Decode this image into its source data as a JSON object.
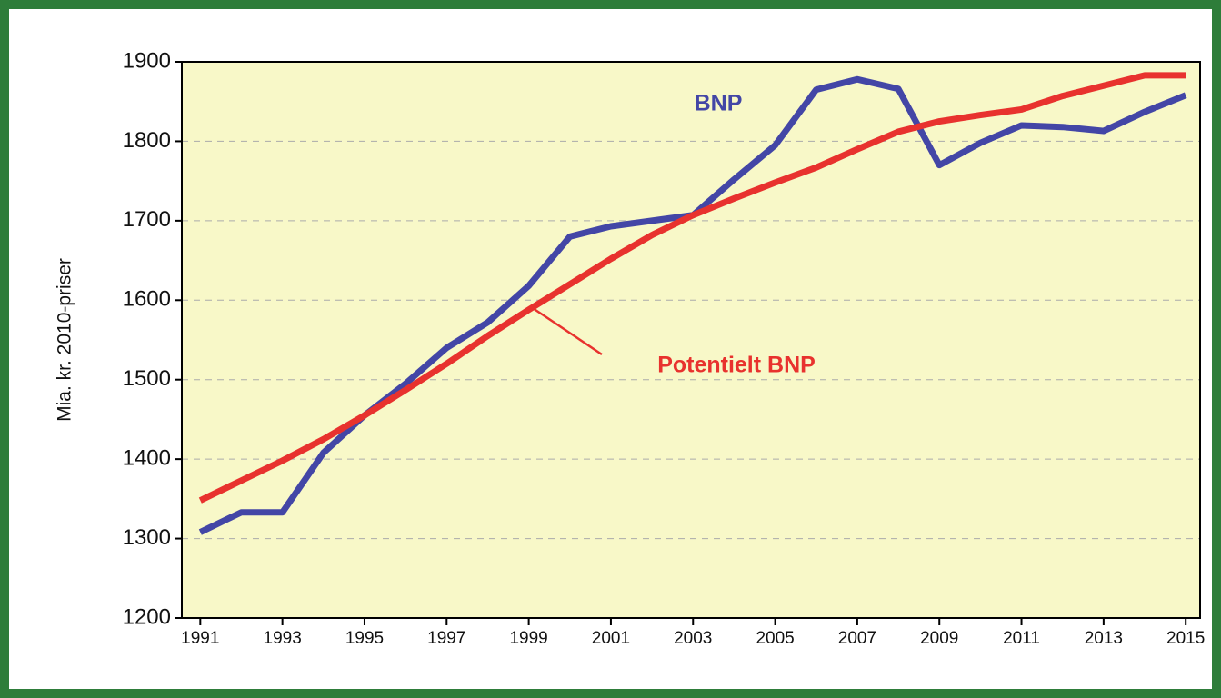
{
  "chart_data": {
    "type": "line",
    "y_label": "Mia. kr. 2010-priser",
    "x": [
      1991,
      1992,
      1993,
      1994,
      1995,
      1996,
      1997,
      1998,
      1999,
      2000,
      2001,
      2002,
      2003,
      2004,
      2005,
      2006,
      2007,
      2008,
      2009,
      2010,
      2011,
      2012,
      2013,
      2014,
      2015
    ],
    "series": [
      {
        "name": "BNP",
        "color": "#4346a6",
        "values": [
          1308,
          1333,
          1333,
          1408,
          1455,
          1495,
          1540,
          1572,
          1618,
          1680,
          1693,
          1700,
          1707,
          1752,
          1795,
          1865,
          1878,
          1866,
          1770,
          1798,
          1820,
          1818,
          1813,
          1837,
          1858
        ]
      },
      {
        "name": "Potentielt BNP",
        "color": "#e8322e",
        "values": [
          1348,
          1373,
          1398,
          1425,
          1455,
          1487,
          1520,
          1555,
          1588,
          1620,
          1652,
          1682,
          1707,
          1728,
          1748,
          1767,
          1790,
          1812,
          1825,
          1833,
          1840,
          1857,
          1870,
          1883,
          1883
        ]
      }
    ],
    "xlim": [
      1990.55,
      2015.35
    ],
    "xticks": [
      1991,
      1993,
      1995,
      1997,
      1999,
      2001,
      2003,
      2005,
      2007,
      2009,
      2011,
      2013,
      2015
    ],
    "ylim": [
      1200,
      1900
    ],
    "yticks": [
      1200,
      1300,
      1400,
      1500,
      1600,
      1700,
      1800,
      1900
    ],
    "grid": true
  }
}
